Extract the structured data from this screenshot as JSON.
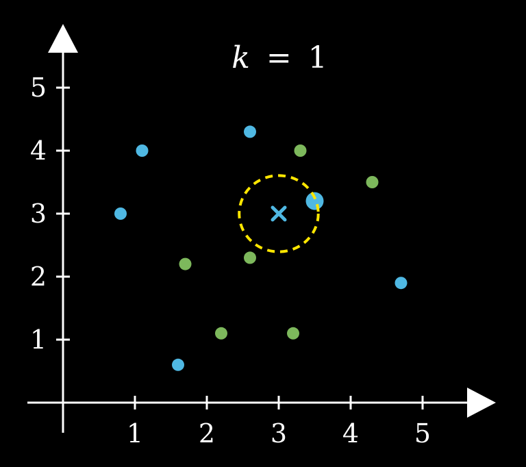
{
  "title": {
    "variable": "k",
    "equals": "=",
    "value": "1"
  },
  "colors": {
    "background": "#000000",
    "axis": "#ffffff",
    "class_blue": "#4FB8E3",
    "class_green": "#7DB85C",
    "query": "#4FB8E3",
    "neighborhood_circle": "#FFE600"
  },
  "chart_data": {
    "type": "scatter",
    "xlim": [
      0,
      5.5
    ],
    "ylim": [
      0,
      5.5
    ],
    "x_ticks": [
      1,
      2,
      3,
      4,
      5
    ],
    "y_ticks": [
      1,
      2,
      3,
      4,
      5
    ],
    "x_tick_labels": [
      "1",
      "2",
      "3",
      "4",
      "5"
    ],
    "y_tick_labels": [
      "1",
      "2",
      "3",
      "4",
      "5"
    ],
    "series": [
      {
        "class": "blue",
        "points": [
          [
            1.1,
            4.0
          ],
          [
            0.8,
            3.0
          ],
          [
            2.6,
            4.3
          ],
          [
            3.5,
            3.2
          ],
          [
            4.7,
            1.9
          ],
          [
            1.6,
            0.6
          ]
        ]
      },
      {
        "class": "green",
        "points": [
          [
            3.3,
            4.0
          ],
          [
            4.3,
            3.5
          ],
          [
            1.7,
            2.2
          ],
          [
            2.6,
            2.3
          ],
          [
            2.2,
            1.1
          ],
          [
            3.2,
            1.1
          ]
        ]
      }
    ],
    "query_point": {
      "x": 3.0,
      "y": 3.0,
      "marker": "x",
      "class": "blue"
    },
    "nearest_neighbor": {
      "x": 3.5,
      "y": 3.2,
      "class": "blue"
    },
    "neighborhood_radius": 0.55,
    "k": 1
  }
}
